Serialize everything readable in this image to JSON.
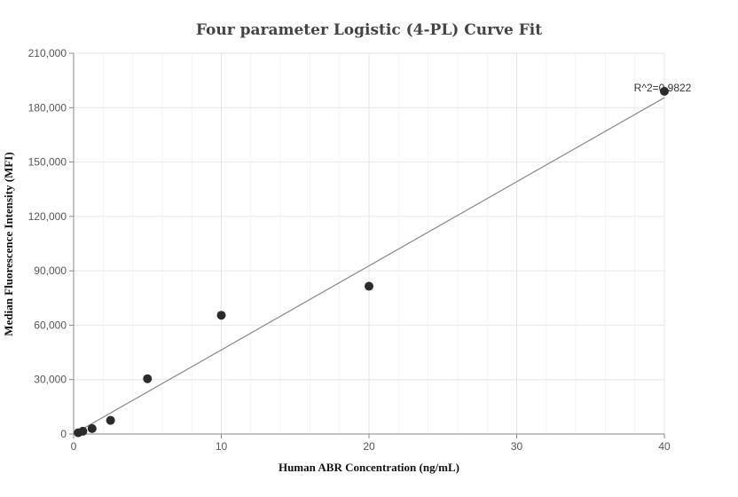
{
  "chart_data": {
    "type": "scatter",
    "title": "Four parameter Logistic (4-PL) Curve Fit",
    "xlabel": "Human ABR Concentration (ng/mL)",
    "ylabel": "Median Fluorescence Intensity (MFI)",
    "xlim": [
      0,
      40
    ],
    "ylim": [
      0,
      210000
    ],
    "x_ticks": [
      0,
      10,
      20,
      30,
      40
    ],
    "y_ticks": [
      0,
      30000,
      60000,
      90000,
      120000,
      150000,
      180000,
      210000
    ],
    "x_tick_labels": [
      "0",
      "10",
      "20",
      "30",
      "40"
    ],
    "y_tick_labels": [
      "0",
      "30,000",
      "60,000",
      "90,000",
      "120,000",
      "150,000",
      "180,000",
      "210,000"
    ],
    "grid": true,
    "points": [
      {
        "x": 0.3125,
        "y": 700
      },
      {
        "x": 0.625,
        "y": 1500
      },
      {
        "x": 1.25,
        "y": 3000
      },
      {
        "x": 2.5,
        "y": 7500
      },
      {
        "x": 5,
        "y": 30500
      },
      {
        "x": 10,
        "y": 65500
      },
      {
        "x": 20,
        "y": 81500
      },
      {
        "x": 40,
        "y": 189000
      }
    ],
    "fit_line": [
      {
        "x": 0,
        "y": 0
      },
      {
        "x": 40,
        "y": 185500
      }
    ],
    "annotation": "R^2=0.9822",
    "colors": {
      "points": "#2b2b2b",
      "fit_line": "#888888",
      "grid": "#e6e6e6",
      "minor_grid": "#f3f3f3",
      "axis": "#888888"
    }
  }
}
